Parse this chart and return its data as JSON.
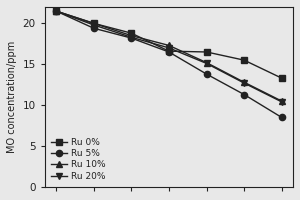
{
  "x": [
    0,
    1,
    2,
    3,
    4,
    5,
    6
  ],
  "ru0": [
    21.5,
    20.0,
    18.8,
    16.6,
    16.5,
    15.5,
    13.3
  ],
  "ru5": [
    21.5,
    19.4,
    18.2,
    16.5,
    13.8,
    11.3,
    8.5
  ],
  "ru10": [
    21.5,
    20.0,
    18.5,
    17.3,
    15.2,
    12.8,
    10.5
  ],
  "ru20": [
    21.5,
    19.8,
    18.3,
    17.0,
    15.1,
    12.7,
    10.4
  ],
  "ylabel": "MO concentration/ppm",
  "ylim": [
    0,
    22
  ],
  "yticks": [
    0,
    5,
    10,
    15,
    20
  ],
  "legend_labels": [
    "Ru 0%",
    "Ru 5%",
    "Ru 10%",
    "Ru 20%"
  ],
  "line_color": "#222222",
  "bg_color": "#e8e8e8",
  "marker_size": 4.5,
  "line_width": 1.0
}
